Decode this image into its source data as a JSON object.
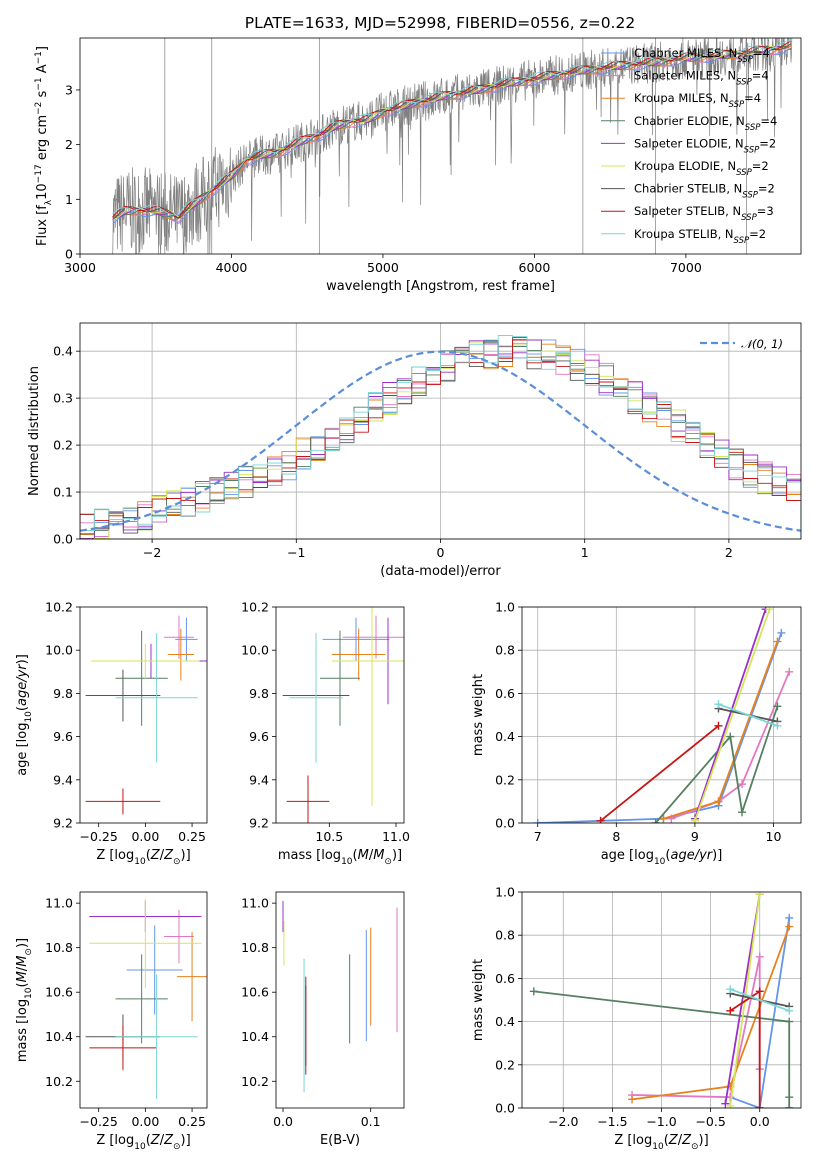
{
  "figure_title": "PLATE=1633, MJD=52998, FIBERID=0556, z=0.22",
  "colors": {
    "Chabrier MILES": "#6495ed",
    "Salpeter MILES": "#e377c2",
    "Kroupa MILES": "#e6821e",
    "Chabrier ELODIE": "#558060",
    "Salpeter ELODIE": "#9b30c8",
    "Kroupa ELODIE": "#d4e55a",
    "Chabrier STELIB": "#555555",
    "Salpeter STELIB": "#c81414",
    "Kroupa STELIB": "#7dd6d6",
    "data": "#808080",
    "normal": "#5b8ed6"
  },
  "legend_spectrum": [
    {
      "series": "Chabrier MILES",
      "prefix": "Chabrier MILES, N",
      "sub": "SSP",
      "suffix": "=4"
    },
    {
      "series": "Salpeter MILES",
      "prefix": "Salpeter MILES, N",
      "sub": "SSP",
      "suffix": "=4"
    },
    {
      "series": "Kroupa MILES",
      "prefix": "Kroupa MILES, N",
      "sub": "SSP",
      "suffix": "=4"
    },
    {
      "series": "Chabrier ELODIE",
      "prefix": "Chabrier ELODIE, N",
      "sub": "SSP",
      "suffix": "=4"
    },
    {
      "series": "Salpeter ELODIE",
      "prefix": "Salpeter ELODIE, N",
      "sub": "SSP",
      "suffix": "=2"
    },
    {
      "series": "Kroupa ELODIE",
      "prefix": "Kroupa ELODIE, N",
      "sub": "SSP",
      "suffix": "=2"
    },
    {
      "series": "Chabrier STELIB",
      "prefix": "Chabrier STELIB, N",
      "sub": "SSP",
      "suffix": "=2"
    },
    {
      "series": "Salpeter STELIB",
      "prefix": "Salpeter STELIB, N",
      "sub": "SSP",
      "suffix": "=3"
    },
    {
      "series": "Kroupa STELIB",
      "prefix": "Kroupa STELIB, N",
      "sub": "SSP",
      "suffix": "=2"
    }
  ],
  "legend_hist": {
    "label": "𝒩(0, 1)"
  },
  "chart_data": [
    {
      "id": "spectrum",
      "type": "line",
      "title": "PLATE=1633, MJD=52998, FIBERID=0556, z=0.22",
      "xlabel": "wavelength [Angstrom, rest frame]",
      "ylabel": "Flux [f_λ 10^-17 erg cm^-2 s^-1 A^-1]",
      "xlim": [
        3000,
        7760
      ],
      "ylim": [
        0,
        3.95
      ],
      "xticks": [
        3000,
        4000,
        5000,
        6000,
        7000
      ],
      "yticks": [
        0,
        1,
        2,
        3
      ],
      "grid": false,
      "model_anchors": {
        "x": [
          3215,
          3300,
          3400,
          3500,
          3600,
          3650,
          3700,
          3800,
          3900,
          4000,
          4100,
          4200,
          4300,
          4400,
          4500,
          4600,
          4700,
          4800,
          4900,
          5000,
          5200,
          5400,
          5600,
          5800,
          6000,
          6200,
          6400,
          6600,
          6800,
          7000,
          7200,
          7400,
          7600,
          7700
        ],
        "y": [
          0.65,
          0.78,
          0.8,
          0.78,
          0.72,
          0.66,
          0.8,
          1.0,
          1.22,
          1.42,
          1.72,
          1.8,
          1.85,
          1.98,
          2.1,
          2.2,
          2.35,
          2.42,
          2.45,
          2.6,
          2.75,
          2.88,
          2.98,
          3.1,
          3.2,
          3.3,
          3.38,
          3.45,
          3.5,
          3.58,
          3.62,
          3.68,
          3.75,
          3.8
        ]
      },
      "series": [
        "Chabrier MILES",
        "Salpeter MILES",
        "Kroupa MILES",
        "Chabrier ELODIE",
        "Salpeter ELODIE",
        "Kroupa ELODIE",
        "Chabrier STELIB",
        "Salpeter STELIB",
        "Kroupa STELIB"
      ],
      "legend_loc": "upper right"
    },
    {
      "id": "residual_hist",
      "type": "bar",
      "xlabel": "(data-model)/error",
      "ylabel": "Normed distribution",
      "xlim": [
        -2.5,
        2.5
      ],
      "ylim": [
        0,
        0.46
      ],
      "xticks": [
        -2,
        -1,
        0,
        1,
        2
      ],
      "yticks": [
        0.0,
        0.1,
        0.2,
        0.3,
        0.4
      ],
      "grid": true,
      "bin_width": 0.1,
      "bin_start": -2.5,
      "reference_curve": "normal N(0,1)",
      "histogram_envelope": [
        0.03,
        0.035,
        0.04,
        0.045,
        0.05,
        0.06,
        0.07,
        0.08,
        0.09,
        0.1,
        0.11,
        0.12,
        0.13,
        0.145,
        0.16,
        0.18,
        0.2,
        0.22,
        0.24,
        0.26,
        0.28,
        0.3,
        0.32,
        0.34,
        0.36,
        0.37,
        0.38,
        0.39,
        0.395,
        0.4,
        0.4,
        0.395,
        0.39,
        0.38,
        0.37,
        0.36,
        0.34,
        0.32,
        0.3,
        0.28,
        0.26,
        0.24,
        0.22,
        0.2,
        0.18,
        0.16,
        0.145,
        0.13,
        0.12,
        0.11
      ]
    },
    {
      "id": "age_vs_Z",
      "type": "scatter",
      "xlabel": "Z [log10(Z/Z☉)]",
      "ylabel": "age [log10(age/yr)]",
      "xlim": [
        -0.35,
        0.33
      ],
      "ylim": [
        9.2,
        10.2
      ],
      "xticks": [
        -0.25,
        0.0,
        0.25
      ],
      "yticks": [
        9.2,
        9.4,
        9.6,
        9.8,
        10.0,
        10.2
      ],
      "points": [
        {
          "series": "Chabrier MILES",
          "x": 0.22,
          "xerr": 0.06,
          "y": 10.05,
          "yerr": 0.1
        },
        {
          "series": "Salpeter MILES",
          "x": 0.18,
          "xerr": 0.08,
          "y": 10.06,
          "yerr": 0.1
        },
        {
          "series": "Kroupa MILES",
          "x": 0.19,
          "xerr": 0.07,
          "y": 9.98,
          "yerr": 0.12
        },
        {
          "series": "Chabrier ELODIE",
          "x": -0.02,
          "xerr": 0.14,
          "y": 9.87,
          "yerr": 0.22
        },
        {
          "series": "Salpeter ELODIE",
          "x": 0.03,
          "xerr": 0.3,
          "y": 9.95,
          "yerr": 0.08
        },
        {
          "series": "Kroupa ELODIE",
          "x": 0.0,
          "xerr": 0.29,
          "y": 9.95,
          "yerr": 0.08
        },
        {
          "series": "Chabrier STELIB",
          "x": -0.12,
          "xerr": 0.2,
          "y": 9.79,
          "yerr": 0.12
        },
        {
          "series": "Salpeter STELIB",
          "x": -0.12,
          "xerr": 0.2,
          "y": 9.3,
          "yerr": 0.06
        },
        {
          "series": "Kroupa STELIB",
          "x": 0.06,
          "xerr": 0.22,
          "y": 9.78,
          "yerr": 0.3
        }
      ]
    },
    {
      "id": "age_vs_mass",
      "type": "scatter",
      "xlabel": "mass [log10(M/M☉)]",
      "ylabel": "",
      "xlim": [
        10.1,
        11.06
      ],
      "ylim": [
        9.2,
        10.2
      ],
      "xticks": [
        10.5,
        11.0
      ],
      "yticks": [
        9.2,
        9.4,
        9.6,
        9.8,
        10.0,
        10.2
      ],
      "points": [
        {
          "series": "Chabrier MILES",
          "x": 10.7,
          "xerr": 0.25,
          "y": 10.05,
          "yerr": 0.1
        },
        {
          "series": "Salpeter MILES",
          "x": 10.85,
          "xerr": 0.25,
          "y": 10.06,
          "yerr": 0.1
        },
        {
          "series": "Kroupa MILES",
          "x": 10.72,
          "xerr": 0.2,
          "y": 9.98,
          "yerr": 0.12
        },
        {
          "series": "Chabrier ELODIE",
          "x": 10.58,
          "xerr": 0.15,
          "y": 9.87,
          "yerr": 0.22
        },
        {
          "series": "Salpeter ELODIE",
          "x": 10.94,
          "xerr": 0.12,
          "y": 9.95,
          "yerr": 0.2
        },
        {
          "series": "Kroupa ELODIE",
          "x": 10.82,
          "xerr": 0.3,
          "y": 9.95,
          "yerr": 0.67
        },
        {
          "series": "Chabrier STELIB",
          "x": 10.4,
          "xerr": 0.25,
          "y": 9.79,
          "yerr": 0.12
        },
        {
          "series": "Salpeter STELIB",
          "x": 10.34,
          "xerr": 0.16,
          "y": 9.3,
          "yerr": 0.12
        },
        {
          "series": "Kroupa STELIB",
          "x": 10.4,
          "xerr": 0.2,
          "y": 9.78,
          "yerr": 0.3
        }
      ]
    },
    {
      "id": "weight_vs_age",
      "type": "line",
      "xlabel": "age [log10(age/yr)]",
      "ylabel": "mass weight",
      "xlim": [
        6.8,
        10.35
      ],
      "ylim": [
        0.0,
        1.0
      ],
      "xticks": [
        7,
        8,
        9,
        10
      ],
      "yticks": [
        0.0,
        0.2,
        0.4,
        0.6,
        0.8,
        1.0
      ],
      "grid": true,
      "series": [
        {
          "name": "Chabrier MILES",
          "x": [
            7.0,
            7.8,
            8.6,
            9.3,
            10.1
          ],
          "y": [
            0.0,
            0.01,
            0.02,
            0.08,
            0.88
          ]
        },
        {
          "name": "Salpeter MILES",
          "x": [
            8.7,
            9.3,
            9.6,
            10.2
          ],
          "y": [
            0.02,
            0.1,
            0.18,
            0.7
          ]
        },
        {
          "name": "Kroupa MILES",
          "x": [
            8.6,
            9.3,
            10.05
          ],
          "y": [
            0.02,
            0.1,
            0.84
          ]
        },
        {
          "name": "Chabrier ELODIE",
          "x": [
            8.5,
            9.45,
            9.6,
            10.05
          ],
          "y": [
            0.0,
            0.4,
            0.05,
            0.54
          ]
        },
        {
          "name": "Salpeter ELODIE",
          "x": [
            9.0,
            9.9
          ],
          "y": [
            0.02,
            0.99
          ]
        },
        {
          "name": "Kroupa ELODIE",
          "x": [
            9.0,
            9.95
          ],
          "y": [
            0.01,
            0.99
          ]
        },
        {
          "name": "Chabrier STELIB",
          "x": [
            9.3,
            10.05
          ],
          "y": [
            0.53,
            0.47
          ]
        },
        {
          "name": "Salpeter STELIB",
          "x": [
            7.8,
            9.3
          ],
          "y": [
            0.01,
            0.45
          ]
        },
        {
          "name": "Kroupa STELIB",
          "x": [
            9.3,
            10.05
          ],
          "y": [
            0.55,
            0.45
          ]
        }
      ]
    },
    {
      "id": "mass_vs_Z",
      "type": "scatter",
      "xlabel": "Z [log10(Z/Z☉)]",
      "ylabel": "mass [log10(M/M☉)]",
      "xlim": [
        -0.35,
        0.33
      ],
      "ylim": [
        10.08,
        11.05
      ],
      "xticks": [
        -0.25,
        0.0,
        0.25
      ],
      "yticks": [
        10.2,
        10.4,
        10.6,
        10.8,
        11.0
      ],
      "points": [
        {
          "series": "Chabrier MILES",
          "x": 0.05,
          "xerr": 0.15,
          "y": 10.7,
          "yerr": 0.2
        },
        {
          "series": "Salpeter MILES",
          "x": 0.18,
          "xerr": 0.08,
          "y": 10.85,
          "yerr": 0.12
        },
        {
          "series": "Kroupa MILES",
          "x": 0.25,
          "xerr": 0.08,
          "y": 10.67,
          "yerr": 0.2
        },
        {
          "series": "Chabrier ELODIE",
          "x": -0.02,
          "xerr": 0.14,
          "y": 10.57,
          "yerr": 0.2
        },
        {
          "series": "Salpeter ELODIE",
          "x": 0.0,
          "xerr": 0.3,
          "y": 10.94,
          "yerr": 0.07
        },
        {
          "series": "Kroupa ELODIE",
          "x": 0.0,
          "xerr": 0.3,
          "y": 10.82,
          "yerr": 0.2
        },
        {
          "series": "Chabrier STELIB",
          "x": -0.12,
          "xerr": 0.2,
          "y": 10.4,
          "yerr": 0.1
        },
        {
          "series": "Salpeter STELIB",
          "x": -0.12,
          "xerr": 0.18,
          "y": 10.35,
          "yerr": 0.1
        },
        {
          "series": "Kroupa STELIB",
          "x": 0.06,
          "xerr": 0.22,
          "y": 10.4,
          "yerr": 0.28
        }
      ]
    },
    {
      "id": "mass_vs_ebv",
      "type": "scatter",
      "xlabel": "E(B-V)",
      "ylabel": "",
      "xlim": [
        -0.008,
        0.138
      ],
      "ylim": [
        10.08,
        11.05
      ],
      "xticks": [
        0.0,
        0.1
      ],
      "yticks": [
        10.2,
        10.4,
        10.6,
        10.8,
        11.0
      ],
      "points": [
        {
          "series": "Chabrier MILES",
          "x": 0.095,
          "y": 10.63,
          "yerr": 0.25
        },
        {
          "series": "Salpeter MILES",
          "x": 0.13,
          "y": 10.7,
          "yerr": 0.28
        },
        {
          "series": "Kroupa MILES",
          "x": 0.1,
          "y": 10.67,
          "yerr": 0.22
        },
        {
          "series": "Chabrier ELODIE",
          "x": 0.076,
          "y": 10.57,
          "yerr": 0.2
        },
        {
          "series": "Salpeter ELODIE",
          "x": 0.0,
          "y": 10.94,
          "yerr": 0.07
        },
        {
          "series": "Kroupa ELODIE",
          "x": 0.001,
          "y": 10.82,
          "yerr": 0.1
        },
        {
          "series": "Chabrier STELIB",
          "x": 0.026,
          "y": 10.45,
          "yerr": 0.18
        },
        {
          "series": "Salpeter STELIB",
          "x": 0.026,
          "y": 10.45,
          "yerr": 0.22
        },
        {
          "series": "Kroupa STELIB",
          "x": 0.024,
          "y": 10.45,
          "yerr": 0.3
        }
      ]
    },
    {
      "id": "weight_vs_Z",
      "type": "line",
      "xlabel": "Z [log10(Z/Z☉)]",
      "ylabel": "mass weight",
      "xlim": [
        -2.42,
        0.42
      ],
      "ylim": [
        0.0,
        1.0
      ],
      "xticks": [
        -2.0,
        -1.5,
        -1.0,
        -0.5,
        0.0
      ],
      "yticks": [
        0.0,
        0.2,
        0.4,
        0.6,
        0.8,
        1.0
      ],
      "grid": true,
      "series": [
        {
          "name": "Chabrier MILES",
          "x": [
            -0.3,
            0.0,
            0.3
          ],
          "y": [
            0.05,
            0.0,
            0.88
          ]
        },
        {
          "name": "Salpeter MILES",
          "x": [
            -1.3,
            -0.3,
            0.0,
            0.0
          ],
          "y": [
            0.06,
            0.05,
            0.7,
            0.18
          ]
        },
        {
          "name": "Kroupa MILES",
          "x": [
            -1.3,
            -0.3,
            0.3
          ],
          "y": [
            0.04,
            0.1,
            0.84
          ]
        },
        {
          "name": "Chabrier ELODIE",
          "x": [
            -2.3,
            0.3,
            0.3,
            0.3
          ],
          "y": [
            0.54,
            0.4,
            0.05,
            0.0
          ]
        },
        {
          "name": "Salpeter ELODIE",
          "x": [
            -0.35,
            0.0
          ],
          "y": [
            0.02,
            0.99
          ]
        },
        {
          "name": "Kroupa ELODIE",
          "x": [
            -0.3,
            0.0
          ],
          "y": [
            0.01,
            0.99
          ]
        },
        {
          "name": "Chabrier STELIB",
          "x": [
            -0.3,
            0.3
          ],
          "y": [
            0.53,
            0.47
          ]
        },
        {
          "name": "Salpeter STELIB",
          "x": [
            -0.3,
            0.0,
            0.0
          ],
          "y": [
            0.45,
            0.54,
            0.0
          ]
        },
        {
          "name": "Kroupa STELIB",
          "x": [
            -0.3,
            0.3
          ],
          "y": [
            0.55,
            0.45
          ]
        }
      ]
    }
  ]
}
